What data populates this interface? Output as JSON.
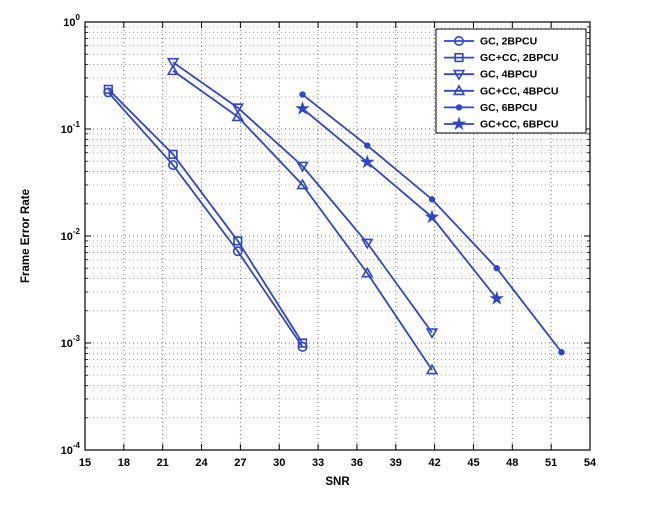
{
  "figure": {
    "background": "#ffffff",
    "line_color": "#2e45cf",
    "axis_color": "#000000",
    "grid_style": "dotted"
  },
  "chart_data": {
    "type": "line",
    "title": "",
    "xlabel": "SNR",
    "ylabel": "Frame Error Rate",
    "xlim": [
      15,
      54
    ],
    "x_ticks": [
      15,
      18,
      21,
      24,
      27,
      30,
      33,
      36,
      39,
      42,
      45,
      48,
      51,
      54
    ],
    "y_scale": "log",
    "ylim": [
      0.0001,
      1
    ],
    "y_exponents": [
      0,
      -1,
      -2,
      -3,
      -4
    ],
    "grid": true,
    "legend_position": "top-right",
    "series": [
      {
        "name": "GC, 2BPCU",
        "marker": "circle",
        "points": [
          [
            16.8,
            0.22
          ],
          [
            21.8,
            0.046
          ],
          [
            26.8,
            0.0072
          ],
          [
            31.8,
            0.00092
          ]
        ]
      },
      {
        "name": "GC+CC, 2BPCU",
        "marker": "square",
        "points": [
          [
            16.8,
            0.235
          ],
          [
            21.8,
            0.058
          ],
          [
            26.8,
            0.009
          ],
          [
            31.8,
            0.001
          ]
        ]
      },
      {
        "name": "GC, 4BPCU",
        "marker": "triangle-down",
        "points": [
          [
            21.8,
            0.42
          ],
          [
            26.8,
            0.158
          ],
          [
            31.8,
            0.045
          ],
          [
            36.8,
            0.0086
          ],
          [
            41.8,
            0.00125
          ]
        ]
      },
      {
        "name": "GC+CC, 4BPCU",
        "marker": "triangle-up",
        "points": [
          [
            21.8,
            0.35
          ],
          [
            26.8,
            0.13
          ],
          [
            31.8,
            0.03
          ],
          [
            36.8,
            0.0045
          ],
          [
            41.8,
            0.00056
          ]
        ]
      },
      {
        "name": "GC, 6BPCU",
        "marker": "dot",
        "points": [
          [
            31.8,
            0.21
          ],
          [
            36.8,
            0.07
          ],
          [
            41.8,
            0.022
          ],
          [
            46.8,
            0.005
          ],
          [
            51.8,
            0.00082
          ]
        ]
      },
      {
        "name": "GC+CC, 6BPCU",
        "marker": "star",
        "points": [
          [
            31.8,
            0.155
          ],
          [
            36.8,
            0.049
          ],
          [
            41.8,
            0.015
          ],
          [
            46.8,
            0.0026
          ]
        ]
      }
    ]
  }
}
